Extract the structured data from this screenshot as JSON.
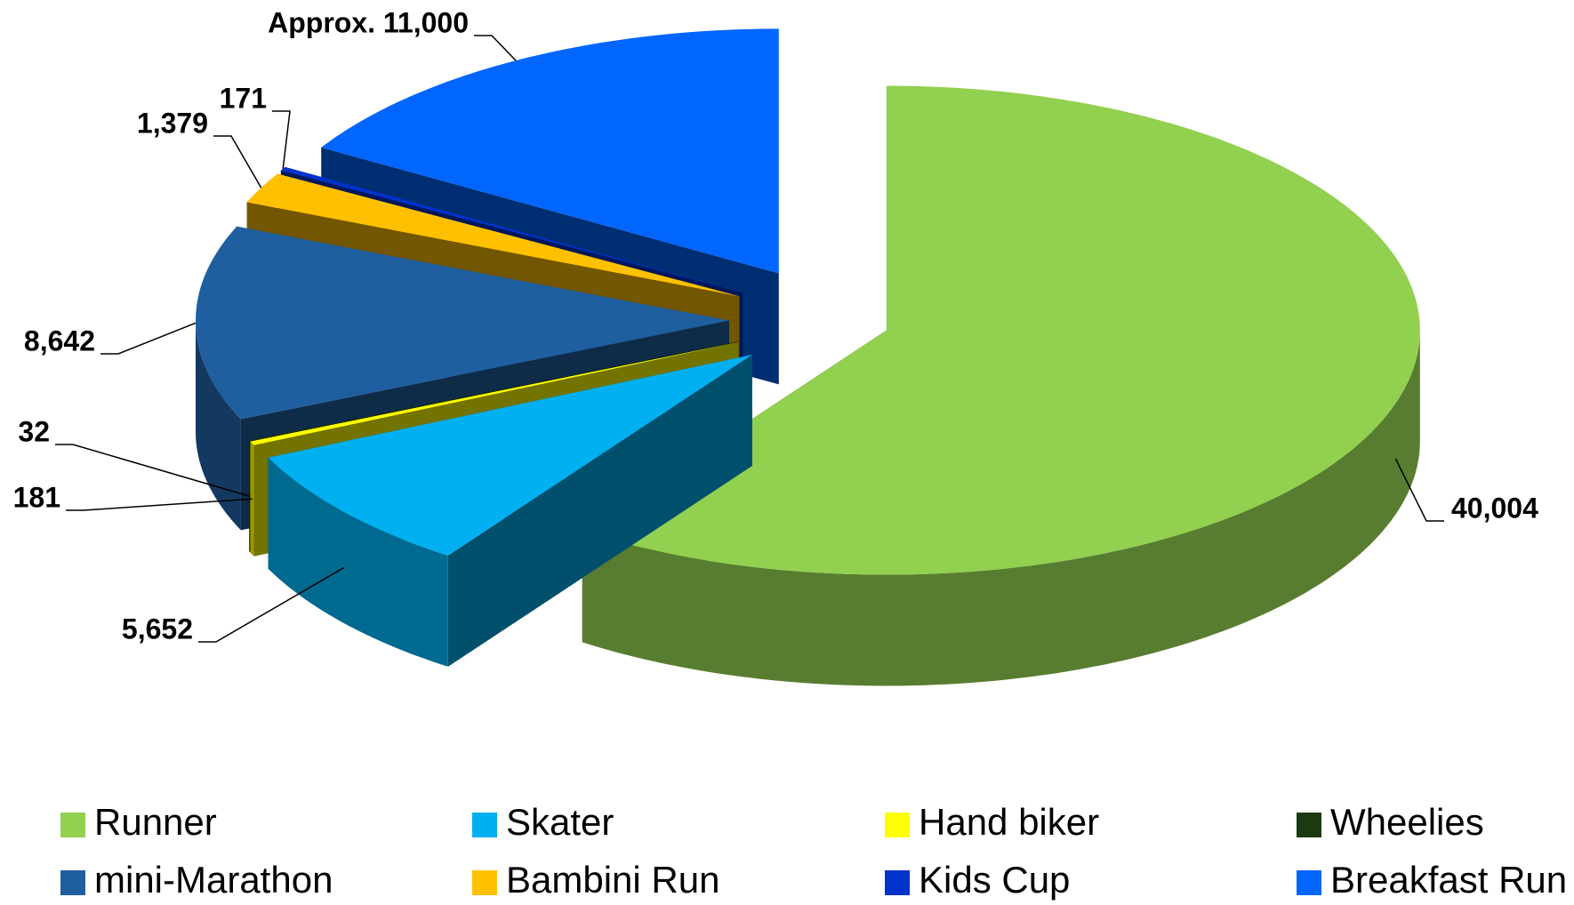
{
  "chart_data": {
    "type": "pie",
    "categories": [
      "Runner",
      "Skater",
      "Hand biker",
      "Wheelies",
      "mini-Marathon",
      "Bambini Run",
      "Kids Cup",
      "Breakfast Run"
    ],
    "values": [
      40004,
      5652,
      181,
      32,
      8642,
      1379,
      171,
      11000
    ],
    "value_labels": [
      "40,004",
      "5,652",
      "181",
      "32",
      "8,642",
      "1,379",
      "171",
      "Approx. 11,000"
    ],
    "colors": [
      "#92d050",
      "#00b0f0",
      "#ffff00",
      "#1b3a12",
      "#1f5fa0",
      "#ffc000",
      "#0033cc",
      "#0066ff"
    ],
    "legend": "bottom"
  }
}
